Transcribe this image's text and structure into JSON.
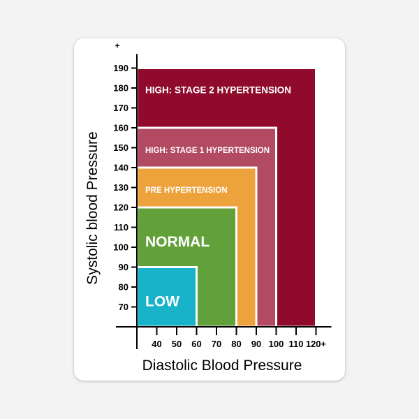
{
  "chart_data": {
    "type": "area",
    "xlabel": "Diastolic Blood Pressure",
    "ylabel": "Systolic blood Pressure",
    "xlim": [
      30,
      120
    ],
    "ylim": [
      60,
      195
    ],
    "x_ticks": [
      {
        "value": 40,
        "label": "40"
      },
      {
        "value": 50,
        "label": "50"
      },
      {
        "value": 60,
        "label": "60"
      },
      {
        "value": 70,
        "label": "70"
      },
      {
        "value": 80,
        "label": "80"
      },
      {
        "value": 90,
        "label": "90"
      },
      {
        "value": 100,
        "label": "100"
      },
      {
        "value": 110,
        "label": "110"
      },
      {
        "value": 120,
        "label": "120+"
      }
    ],
    "y_ticks": [
      {
        "value": 70,
        "label": "70"
      },
      {
        "value": 80,
        "label": "80"
      },
      {
        "value": 90,
        "label": "90"
      },
      {
        "value": 100,
        "label": "100"
      },
      {
        "value": 110,
        "label": "110"
      },
      {
        "value": 120,
        "label": "120"
      },
      {
        "value": 130,
        "label": "130"
      },
      {
        "value": 140,
        "label": "140"
      },
      {
        "value": 150,
        "label": "150"
      },
      {
        "value": 160,
        "label": "160"
      },
      {
        "value": 170,
        "label": "170"
      },
      {
        "value": 180,
        "label": "180"
      },
      {
        "value": 190,
        "label": "190"
      }
    ],
    "y_axis_top_label": "+",
    "zones": [
      {
        "label": "HIGH: STAGE 2 HYPERTENSION",
        "diastolic_max": 120,
        "systolic_max": 190,
        "color": "#8f0a2b",
        "label_size": "large"
      },
      {
        "label": "HIGH: STAGE 1 HYPERTENSION",
        "diastolic_max": 100,
        "systolic_max": 160,
        "color": "#b24a62",
        "label_size": "small"
      },
      {
        "label": "PRE HYPERTENSION",
        "diastolic_max": 90,
        "systolic_max": 140,
        "color": "#eea23c",
        "label_size": "small"
      },
      {
        "label": "NORMAL",
        "diastolic_max": 80,
        "systolic_max": 120,
        "color": "#62a03a",
        "label_size": "xlarge"
      },
      {
        "label": "LOW",
        "diastolic_max": 60,
        "systolic_max": 90,
        "color": "#18b3c9",
        "label_size": "xlarge"
      }
    ]
  }
}
